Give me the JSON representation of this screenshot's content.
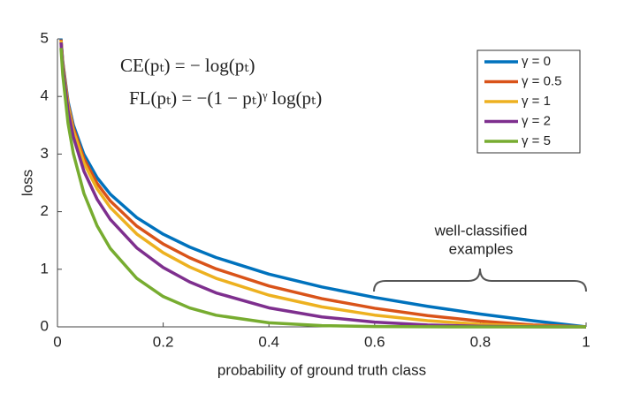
{
  "chart_data": {
    "type": "line",
    "x_label": "probability of ground truth class",
    "y_label": "loss",
    "annotations": [
      "CE(pₜ) = − log(pₜ)",
      "FL(pₜ) = −(1 − pₜ)ᵞ log(pₜ)",
      "well-classified",
      "examples"
    ],
    "x": [
      0.0067,
      0.01,
      0.02,
      0.03,
      0.05,
      0.075,
      0.1,
      0.15,
      0.2,
      0.25,
      0.3,
      0.4,
      0.5,
      0.6,
      0.7,
      0.8,
      0.9,
      1.0
    ],
    "series": [
      {
        "name": "γ = 0",
        "color": "#0072bd",
        "values": [
          5.006,
          4.605,
          3.912,
          3.507,
          2.996,
          2.59,
          2.303,
          1.897,
          1.609,
          1.386,
          1.204,
          0.916,
          0.693,
          0.511,
          0.357,
          0.223,
          0.105,
          0
        ]
      },
      {
        "name": "γ = 0.5",
        "color": "#d95319",
        "values": [
          4.989,
          4.582,
          3.873,
          3.454,
          2.92,
          2.491,
          2.185,
          1.749,
          1.439,
          1.2,
          1.007,
          0.71,
          0.49,
          0.323,
          0.196,
          0.1,
          0.033,
          0
        ]
      },
      {
        "name": "γ = 1",
        "color": "#edb120",
        "values": [
          4.972,
          4.559,
          3.834,
          3.402,
          2.846,
          2.396,
          2.073,
          1.612,
          1.287,
          1.04,
          0.843,
          0.55,
          0.347,
          0.204,
          0.107,
          0.045,
          0.011,
          0
        ]
      },
      {
        "name": "γ = 2",
        "color": "#7e2f8e",
        "values": [
          4.939,
          4.513,
          3.757,
          3.3,
          2.704,
          2.216,
          1.865,
          1.371,
          1.03,
          0.78,
          0.59,
          0.33,
          0.173,
          0.082,
          0.032,
          0.009,
          0.001,
          0
        ]
      },
      {
        "name": "γ = 5",
        "color": "#77ac30",
        "values": [
          4.841,
          4.379,
          3.536,
          3.012,
          2.318,
          1.754,
          1.36,
          0.842,
          0.527,
          0.329,
          0.202,
          0.071,
          0.022,
          0.005,
          0.001,
          0,
          0,
          0
        ]
      }
    ],
    "xlim": [
      0,
      1
    ],
    "xticks": [
      0,
      0.2,
      0.4,
      0.6,
      0.8,
      1
    ],
    "ylim": [
      0,
      5
    ],
    "yticks": [
      0,
      1,
      2,
      3,
      4,
      5
    ],
    "grid": false,
    "legend": "upper right"
  }
}
